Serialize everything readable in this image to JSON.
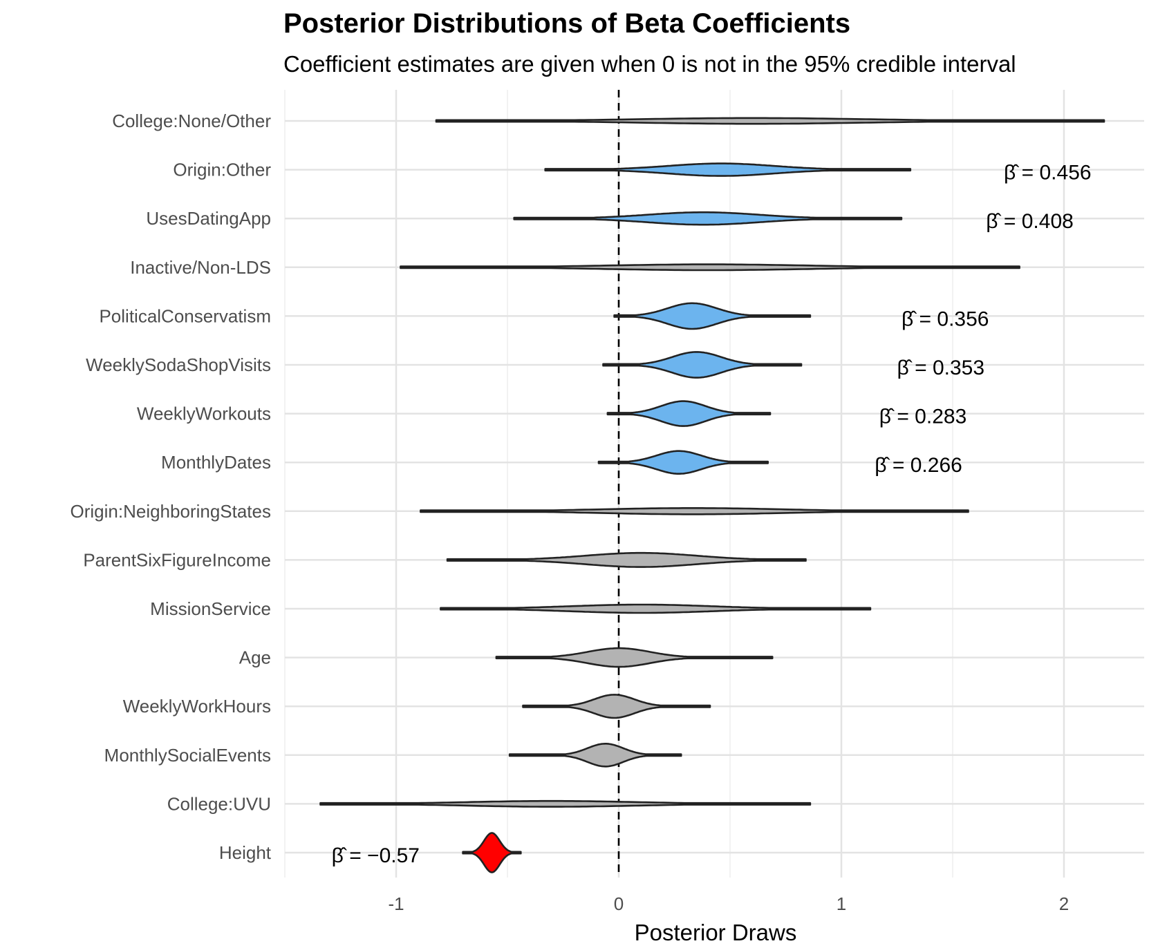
{
  "chart_data": {
    "type": "violin",
    "title": "Posterior Distributions of Beta Coefficients",
    "subtitle": "Coefficient estimates are given when 0 is not in the 95% credible interval",
    "xlabel": "Posterior Draws",
    "ylabel": "",
    "xlim": [
      -1.5,
      2.35
    ],
    "xticks": [
      -1,
      0,
      1,
      2
    ],
    "xtick_labels": [
      "-1",
      "0",
      "1",
      "2"
    ],
    "reference_line": {
      "x": 0,
      "style": "dashed"
    },
    "grid": true,
    "colors": {
      "positive": "#6cb4ee",
      "negative": "#ff0000",
      "neutral": "#b3b3b3",
      "outline": "#222222",
      "grid": "#e5e5e5"
    },
    "categories": [
      "College:None/Other",
      "Origin:Other",
      "UsesDatingApp",
      "Inactive/Non-LDS",
      "PoliticalConservatism",
      "WeeklySodaShopVisits",
      "WeeklyWorkouts",
      "MonthlyDates",
      "Origin:NeighboringStates",
      "ParentSixFigureIncome",
      "MissionService",
      "Age",
      "WeeklyWorkHours",
      "MonthlySocialEvents",
      "College:UVU",
      "Height"
    ],
    "distributions": [
      {
        "name": "College:None/Other",
        "min": -0.82,
        "max": 2.18,
        "mode": 0.6,
        "sd": 0.5,
        "peak_halfwidth": 0.14,
        "fill": "neutral"
      },
      {
        "name": "Origin:Other",
        "min": -0.33,
        "max": 1.31,
        "mode": 0.46,
        "sd": 0.24,
        "peak_halfwidth": 0.3,
        "fill": "positive"
      },
      {
        "name": "UsesDatingApp",
        "min": -0.47,
        "max": 1.27,
        "mode": 0.38,
        "sd": 0.25,
        "peak_halfwidth": 0.3,
        "fill": "positive"
      },
      {
        "name": "Inactive/Non-LDS",
        "min": -0.98,
        "max": 1.8,
        "mode": 0.4,
        "sd": 0.45,
        "peak_halfwidth": 0.14,
        "fill": "neutral"
      },
      {
        "name": "PoliticalConservatism",
        "min": -0.02,
        "max": 0.86,
        "mode": 0.33,
        "sd": 0.11,
        "peak_halfwidth": 0.62,
        "fill": "positive"
      },
      {
        "name": "WeeklySodaShopVisits",
        "min": -0.07,
        "max": 0.82,
        "mode": 0.35,
        "sd": 0.11,
        "peak_halfwidth": 0.62,
        "fill": "positive"
      },
      {
        "name": "WeeklyWorkouts",
        "min": -0.05,
        "max": 0.68,
        "mode": 0.29,
        "sd": 0.1,
        "peak_halfwidth": 0.6,
        "fill": "positive"
      },
      {
        "name": "MonthlyDates",
        "min": -0.09,
        "max": 0.67,
        "mode": 0.27,
        "sd": 0.1,
        "peak_halfwidth": 0.55,
        "fill": "positive"
      },
      {
        "name": "Origin:NeighboringStates",
        "min": -0.89,
        "max": 1.57,
        "mode": 0.33,
        "sd": 0.4,
        "peak_halfwidth": 0.15,
        "fill": "neutral"
      },
      {
        "name": "ParentSixFigureIncome",
        "min": -0.77,
        "max": 0.84,
        "mode": 0.1,
        "sd": 0.25,
        "peak_halfwidth": 0.34,
        "fill": "neutral"
      },
      {
        "name": "MissionService",
        "min": -0.8,
        "max": 1.13,
        "mode": 0.1,
        "sd": 0.32,
        "peak_halfwidth": 0.2,
        "fill": "neutral"
      },
      {
        "name": "Age",
        "min": -0.55,
        "max": 0.69,
        "mode": 0.0,
        "sd": 0.14,
        "peak_halfwidth": 0.45,
        "fill": "neutral"
      },
      {
        "name": "WeeklyWorkHours",
        "min": -0.43,
        "max": 0.41,
        "mode": -0.02,
        "sd": 0.09,
        "peak_halfwidth": 0.56,
        "fill": "neutral"
      },
      {
        "name": "MonthlySocialEvents",
        "min": -0.49,
        "max": 0.28,
        "mode": -0.06,
        "sd": 0.08,
        "peak_halfwidth": 0.55,
        "fill": "neutral"
      },
      {
        "name": "College:UVU",
        "min": -1.34,
        "max": 0.86,
        "mode": -0.3,
        "sd": 0.38,
        "peak_halfwidth": 0.14,
        "fill": "neutral"
      },
      {
        "name": "Height",
        "min": -0.7,
        "max": -0.44,
        "mode": -0.57,
        "sd": 0.035,
        "peak_halfwidth": 0.95,
        "fill": "negative"
      }
    ],
    "annotations": [
      {
        "category": "Origin:Other",
        "x": 1.73,
        "text": "β̂ = 0.456"
      },
      {
        "category": "UsesDatingApp",
        "x": 1.65,
        "text": "β̂ = 0.408"
      },
      {
        "category": "PoliticalConservatism",
        "x": 1.27,
        "text": "β̂ = 0.356"
      },
      {
        "category": "WeeklySodaShopVisits",
        "x": 1.25,
        "text": "β̂ = 0.353"
      },
      {
        "category": "WeeklyWorkouts",
        "x": 1.17,
        "text": "β̂ = 0.283"
      },
      {
        "category": "MonthlyDates",
        "x": 1.15,
        "text": "β̂ = 0.266"
      },
      {
        "category": "Height",
        "x": -1.29,
        "text": "β̂ = −0.57"
      }
    ]
  }
}
